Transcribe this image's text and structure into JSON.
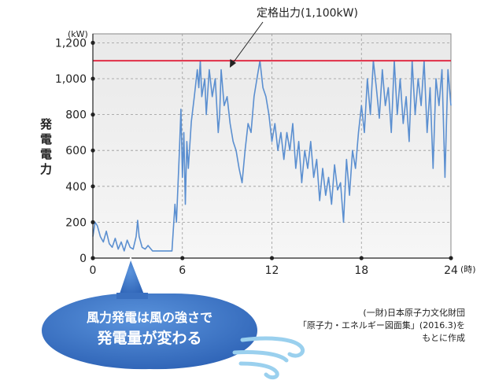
{
  "chart_data": {
    "type": "line",
    "ylabel": "発電電力",
    "yunit": "(kW)",
    "xunit": "(時)",
    "xlim": [
      0,
      24
    ],
    "ylim": [
      0,
      1250
    ],
    "xticks": [
      0,
      6,
      12,
      18,
      24
    ],
    "yticks": [
      0,
      200,
      400,
      600,
      800,
      1000,
      1200
    ],
    "ytick_labels": [
      "0",
      "200",
      "400",
      "600",
      "800",
      "1,000",
      "1,200"
    ],
    "grid": true,
    "rated_output": {
      "value": 1100,
      "label": "定格出力(1,100kW)",
      "color": "#e0203a"
    },
    "series": [
      {
        "color": "#5b8fd0",
        "points": [
          [
            0.0,
            120
          ],
          [
            0.15,
            200
          ],
          [
            0.3,
            180
          ],
          [
            0.5,
            120
          ],
          [
            0.7,
            90
          ],
          [
            0.9,
            150
          ],
          [
            1.1,
            80
          ],
          [
            1.3,
            60
          ],
          [
            1.5,
            110
          ],
          [
            1.7,
            50
          ],
          [
            1.9,
            90
          ],
          [
            2.1,
            40
          ],
          [
            2.3,
            100
          ],
          [
            2.5,
            60
          ],
          [
            2.7,
            50
          ],
          [
            2.9,
            120
          ],
          [
            3.0,
            210
          ],
          [
            3.1,
            120
          ],
          [
            3.3,
            60
          ],
          [
            3.5,
            50
          ],
          [
            3.7,
            70
          ],
          [
            4.0,
            40
          ],
          [
            4.5,
            40
          ],
          [
            5.0,
            40
          ],
          [
            5.3,
            40
          ],
          [
            5.5,
            300
          ],
          [
            5.6,
            200
          ],
          [
            5.8,
            600
          ],
          [
            5.9,
            830
          ],
          [
            6.0,
            450
          ],
          [
            6.1,
            700
          ],
          [
            6.2,
            300
          ],
          [
            6.3,
            650
          ],
          [
            6.4,
            500
          ],
          [
            6.6,
            760
          ],
          [
            6.8,
            900
          ],
          [
            7.0,
            1050
          ],
          [
            7.1,
            950
          ],
          [
            7.2,
            1100
          ],
          [
            7.3,
            900
          ],
          [
            7.5,
            1000
          ],
          [
            7.6,
            800
          ],
          [
            7.8,
            1050
          ],
          [
            8.0,
            900
          ],
          [
            8.2,
            1000
          ],
          [
            8.4,
            700
          ],
          [
            8.5,
            800
          ],
          [
            8.6,
            1050
          ],
          [
            8.8,
            850
          ],
          [
            9.0,
            900
          ],
          [
            9.2,
            750
          ],
          [
            9.4,
            650
          ],
          [
            9.6,
            600
          ],
          [
            9.8,
            500
          ],
          [
            10.0,
            420
          ],
          [
            10.2,
            600
          ],
          [
            10.4,
            750
          ],
          [
            10.6,
            700
          ],
          [
            10.8,
            900
          ],
          [
            11.0,
            1000
          ],
          [
            11.2,
            1100
          ],
          [
            11.4,
            950
          ],
          [
            11.6,
            900
          ],
          [
            11.8,
            800
          ],
          [
            12.0,
            650
          ],
          [
            12.2,
            750
          ],
          [
            12.4,
            600
          ],
          [
            12.6,
            700
          ],
          [
            12.8,
            550
          ],
          [
            13.0,
            700
          ],
          [
            13.2,
            600
          ],
          [
            13.4,
            750
          ],
          [
            13.6,
            500
          ],
          [
            13.8,
            650
          ],
          [
            14.0,
            420
          ],
          [
            14.2,
            600
          ],
          [
            14.4,
            500
          ],
          [
            14.6,
            650
          ],
          [
            14.8,
            450
          ],
          [
            15.0,
            550
          ],
          [
            15.2,
            320
          ],
          [
            15.4,
            500
          ],
          [
            15.6,
            350
          ],
          [
            15.8,
            450
          ],
          [
            16.0,
            300
          ],
          [
            16.2,
            520
          ],
          [
            16.4,
            380
          ],
          [
            16.6,
            420
          ],
          [
            16.8,
            200
          ],
          [
            17.0,
            550
          ],
          [
            17.2,
            350
          ],
          [
            17.4,
            600
          ],
          [
            17.6,
            500
          ],
          [
            17.8,
            700
          ],
          [
            18.0,
            850
          ],
          [
            18.2,
            700
          ],
          [
            18.4,
            1000
          ],
          [
            18.6,
            800
          ],
          [
            18.8,
            1100
          ],
          [
            19.0,
            950
          ],
          [
            19.2,
            780
          ],
          [
            19.4,
            1050
          ],
          [
            19.6,
            850
          ],
          [
            19.8,
            950
          ],
          [
            20.0,
            700
          ],
          [
            20.2,
            1100
          ],
          [
            20.4,
            800
          ],
          [
            20.6,
            1000
          ],
          [
            20.8,
            750
          ],
          [
            21.0,
            900
          ],
          [
            21.2,
            650
          ],
          [
            21.4,
            1100
          ],
          [
            21.6,
            800
          ],
          [
            21.8,
            1000
          ],
          [
            22.0,
            850
          ],
          [
            22.2,
            1100
          ],
          [
            22.4,
            700
          ],
          [
            22.6,
            950
          ],
          [
            22.8,
            500
          ],
          [
            23.0,
            1000
          ],
          [
            23.2,
            850
          ],
          [
            23.4,
            1050
          ],
          [
            23.6,
            450
          ],
          [
            23.8,
            1050
          ],
          [
            24.0,
            850
          ]
        ]
      }
    ],
    "annotations": [
      {
        "text": "風力発電は風の強さで",
        "style": "bubble"
      },
      {
        "text": "発電量が変わる",
        "style": "bubble"
      }
    ]
  },
  "source": {
    "line1": "(一財)日本原子力文化財団",
    "line2": "「原子力・エネルギー図面集」(2016.3)を",
    "line3": "もとに作成"
  },
  "bubble": {
    "line1": "風力発電は風の強さで",
    "line2": "発電量が変わる",
    "fill_color": "#3b72c4"
  }
}
